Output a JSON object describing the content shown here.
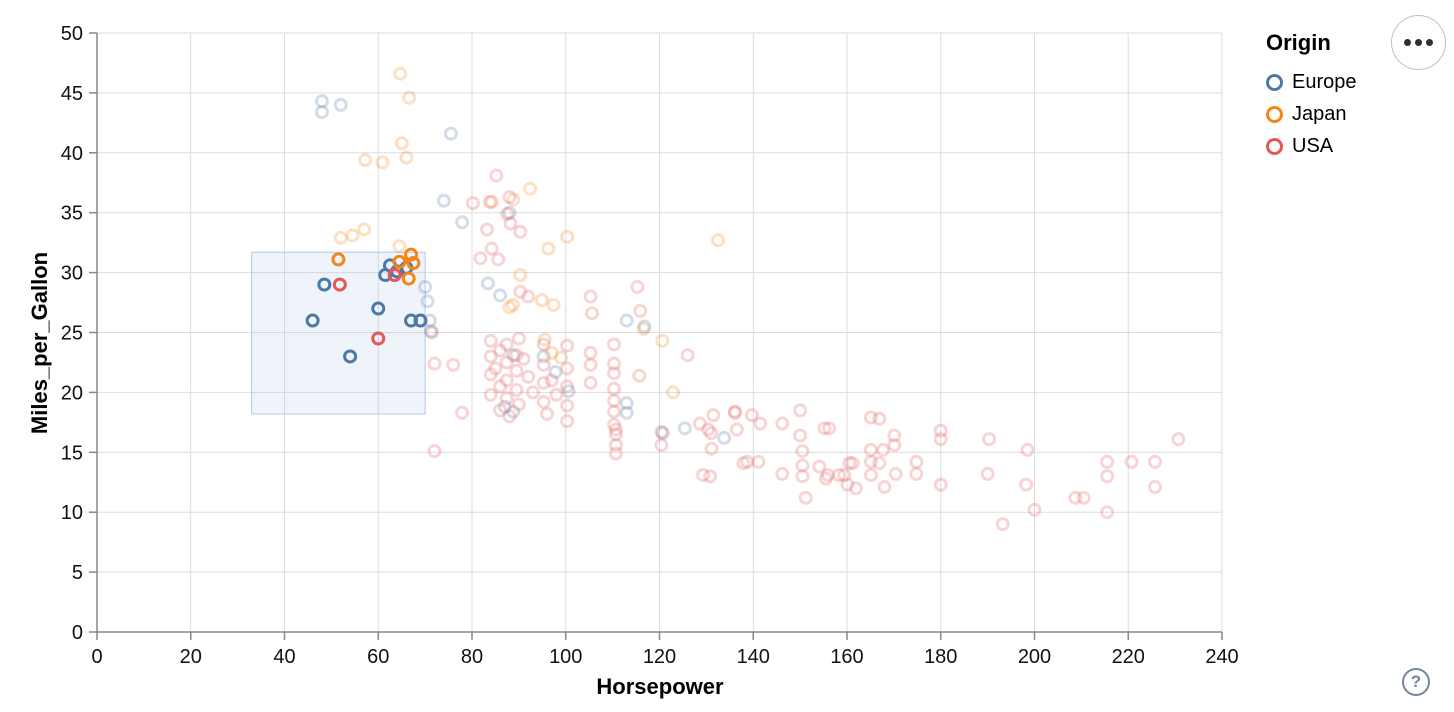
{
  "window": {
    "background": "#ffffff"
  },
  "controls": {
    "menu_button": {
      "icon": "ellipsis-icon"
    },
    "help_button": {
      "label": "?"
    }
  },
  "legend": {
    "title": "Origin",
    "entries": [
      {
        "label": "Europe",
        "color": "#4c78a8"
      },
      {
        "label": "Japan",
        "color": "#f58518"
      },
      {
        "label": "USA",
        "color": "#e45756"
      }
    ]
  },
  "chart_data": {
    "type": "scatter",
    "title": "",
    "xlabel": "Horsepower",
    "ylabel": "Miles_per_Gallon",
    "xlim": [
      0,
      240
    ],
    "ylim": [
      0,
      50
    ],
    "xticks": [
      0,
      20,
      40,
      60,
      80,
      100,
      120,
      140,
      160,
      180,
      200,
      220,
      240
    ],
    "yticks": [
      0,
      5,
      10,
      15,
      20,
      25,
      30,
      35,
      40,
      45,
      50
    ],
    "grid": true,
    "legend_position": "top-right",
    "point_style": "open-circle",
    "unselected_opacity": 0.25,
    "style": {
      "grid_color": "#dddddd",
      "axis_color": "#888888",
      "tick_label_color": "#111111",
      "point_radius": 5.5,
      "point_stroke_width": 3
    },
    "selection_brush": {
      "x": [
        33,
        70
      ],
      "y": [
        18.2,
        31.7
      ],
      "fill": "#a9c0e8",
      "fill_opacity": 0.18,
      "stroke": "#b3c7ea"
    },
    "series": [
      {
        "name": "Europe",
        "color": "#4c78a8",
        "selected": [
          [
            46,
            26
          ],
          [
            48.5,
            29
          ],
          [
            54,
            23
          ],
          [
            60,
            27
          ],
          [
            61.5,
            29.8
          ],
          [
            62.5,
            30.6
          ],
          [
            64,
            30.1
          ],
          [
            66,
            30.4
          ],
          [
            67,
            26
          ],
          [
            69,
            26
          ]
        ],
        "unselected": [
          [
            48,
            43.4
          ],
          [
            48,
            44.3
          ],
          [
            52,
            44
          ],
          [
            75.5,
            41.6
          ],
          [
            74,
            36
          ],
          [
            77.9,
            34.2
          ],
          [
            88,
            35
          ],
          [
            70,
            28.8
          ],
          [
            70.5,
            27.6
          ],
          [
            71,
            26
          ],
          [
            71.2,
            25.1
          ],
          [
            83.4,
            29.1
          ],
          [
            86,
            28.1
          ],
          [
            88.8,
            23.1
          ],
          [
            95.3,
            23
          ],
          [
            97.8,
            21.7
          ],
          [
            100.6,
            20.1
          ],
          [
            87,
            18.8
          ],
          [
            88.8,
            18.4
          ],
          [
            113,
            26
          ],
          [
            116.8,
            25.5
          ],
          [
            113,
            19.1
          ],
          [
            113,
            18.3
          ],
          [
            120.7,
            16.6
          ],
          [
            125.4,
            17
          ],
          [
            133.8,
            16.2
          ]
        ]
      },
      {
        "name": "Japan",
        "color": "#f58518",
        "selected": [
          [
            51.5,
            31.1
          ],
          [
            64.5,
            30.9
          ],
          [
            67,
            31.5
          ],
          [
            67.5,
            30.8
          ],
          [
            66.5,
            29.5
          ]
        ],
        "unselected": [
          [
            64.7,
            46.6
          ],
          [
            66.6,
            44.6
          ],
          [
            65,
            40.8
          ],
          [
            66,
            39.6
          ],
          [
            60.9,
            39.2
          ],
          [
            57.2,
            39.4
          ],
          [
            92.4,
            37
          ],
          [
            88.8,
            36.1
          ],
          [
            83.8,
            35.9
          ],
          [
            57,
            33.6
          ],
          [
            54.5,
            33.1
          ],
          [
            52,
            32.9
          ],
          [
            64.5,
            32.2
          ],
          [
            100.3,
            33
          ],
          [
            96.3,
            32
          ],
          [
            132.5,
            32.7
          ],
          [
            90.3,
            29.8
          ],
          [
            88,
            27.1
          ],
          [
            88.7,
            27.3
          ],
          [
            94.9,
            27.7
          ],
          [
            97.4,
            27.3
          ],
          [
            95.5,
            24.4
          ],
          [
            97,
            23.3
          ],
          [
            99,
            22.9
          ],
          [
            116.6,
            25.3
          ],
          [
            120.6,
            24.3
          ],
          [
            122.9,
            20
          ]
        ]
      },
      {
        "name": "USA",
        "color": "#e45756",
        "selected": [
          [
            51.8,
            29
          ],
          [
            60,
            24.5
          ],
          [
            63.5,
            29.8
          ]
        ],
        "unselected": [
          [
            85.2,
            38.1
          ],
          [
            80.2,
            35.8
          ],
          [
            84.2,
            35.9
          ],
          [
            88,
            36.3
          ],
          [
            87.5,
            34.9
          ],
          [
            88.2,
            34.1
          ],
          [
            83.2,
            33.6
          ],
          [
            90.3,
            33.4
          ],
          [
            84.2,
            32
          ],
          [
            81.8,
            31.2
          ],
          [
            85.6,
            31.1
          ],
          [
            90.3,
            28.4
          ],
          [
            92,
            28
          ],
          [
            105.3,
            28
          ],
          [
            105.6,
            26.6
          ],
          [
            115.3,
            28.8
          ],
          [
            115.9,
            26.8
          ],
          [
            126,
            23.1
          ],
          [
            72,
            15.1
          ],
          [
            71.5,
            25
          ],
          [
            72,
            22.4
          ],
          [
            76,
            22.3
          ],
          [
            77.9,
            18.3
          ],
          [
            84,
            24.3
          ],
          [
            84,
            23
          ],
          [
            84,
            21.5
          ],
          [
            84,
            19.8
          ],
          [
            85,
            22
          ],
          [
            86,
            23.5
          ],
          [
            86,
            20.5
          ],
          [
            86,
            18.5
          ],
          [
            87.4,
            24
          ],
          [
            87.4,
            22.5
          ],
          [
            87.4,
            21
          ],
          [
            87.4,
            19.5
          ],
          [
            88,
            18
          ],
          [
            89.5,
            23.1
          ],
          [
            89.5,
            21.8
          ],
          [
            89.5,
            20.2
          ],
          [
            90,
            24.5
          ],
          [
            90,
            19
          ],
          [
            91,
            22.8
          ],
          [
            92,
            21.3
          ],
          [
            93,
            20
          ],
          [
            95.3,
            24
          ],
          [
            95.3,
            22.3
          ],
          [
            95.3,
            20.8
          ],
          [
            95.3,
            19.2
          ],
          [
            96,
            18.2
          ],
          [
            97,
            21
          ],
          [
            98,
            19.8
          ],
          [
            100.3,
            23.9
          ],
          [
            100.3,
            22
          ],
          [
            100.3,
            20.5
          ],
          [
            100.3,
            18.9
          ],
          [
            100.3,
            17.6
          ],
          [
            105.3,
            23.3
          ],
          [
            105.3,
            22.3
          ],
          [
            105.3,
            20.8
          ],
          [
            110.3,
            24
          ],
          [
            110.3,
            22.4
          ],
          [
            110.3,
            21.6
          ],
          [
            110.3,
            20.3
          ],
          [
            110.3,
            19.3
          ],
          [
            110.3,
            18.4
          ],
          [
            110.3,
            17.3
          ],
          [
            110.7,
            16.9
          ],
          [
            110.7,
            16.5
          ],
          [
            110.7,
            15.6
          ],
          [
            110.7,
            14.9
          ],
          [
            115.7,
            21.4
          ],
          [
            120.4,
            16.7
          ],
          [
            120.4,
            15.6
          ],
          [
            128.6,
            17.4
          ],
          [
            130.4,
            16.9
          ],
          [
            131,
            16.6
          ],
          [
            131.1,
            15.3
          ],
          [
            129.3,
            13.1
          ],
          [
            130.8,
            13
          ],
          [
            136.1,
            18.4
          ],
          [
            136.5,
            16.9
          ],
          [
            131.5,
            18.1
          ],
          [
            136.1,
            18.3
          ],
          [
            137.9,
            14.1
          ],
          [
            139.7,
            18.1
          ],
          [
            141.5,
            17.4
          ],
          [
            146.2,
            17.4
          ],
          [
            156.2,
            17
          ],
          [
            138.7,
            14.2
          ],
          [
            141.1,
            14.2
          ],
          [
            146.2,
            13.2
          ],
          [
            150,
            18.5
          ],
          [
            150,
            16.4
          ],
          [
            150.5,
            15.1
          ],
          [
            150.5,
            13.9
          ],
          [
            150.5,
            13
          ],
          [
            151.2,
            11.2
          ],
          [
            155.5,
            12.8
          ],
          [
            159.4,
            13.1
          ],
          [
            161.2,
            14.1
          ],
          [
            161.9,
            12
          ],
          [
            166.9,
            17.8
          ],
          [
            167.7,
            15.2
          ],
          [
            166.9,
            14.1
          ],
          [
            168,
            12.1
          ],
          [
            165.1,
            17.9
          ],
          [
            155.2,
            17
          ],
          [
            170.1,
            16.4
          ],
          [
            170.1,
            15.6
          ],
          [
            165.1,
            15.2
          ],
          [
            165.1,
            14.2
          ],
          [
            165.1,
            13.1
          ],
          [
            160.5,
            14.1
          ],
          [
            154.1,
            13.8
          ],
          [
            155.9,
            13.1
          ],
          [
            158.3,
            13.1
          ],
          [
            160.1,
            12.3
          ],
          [
            170.4,
            13.2
          ],
          [
            174.8,
            14.2
          ],
          [
            174.8,
            13.2
          ],
          [
            180,
            16.8
          ],
          [
            180,
            16.1
          ],
          [
            180,
            12.3
          ],
          [
            190.3,
            16.1
          ],
          [
            190,
            13.2
          ],
          [
            193.2,
            9
          ],
          [
            198.5,
            15.2
          ],
          [
            198.2,
            12.3
          ],
          [
            200,
            10.2
          ],
          [
            208.7,
            11.2
          ],
          [
            210.5,
            11.2
          ],
          [
            215.5,
            14.2
          ],
          [
            215.5,
            13
          ],
          [
            215.5,
            10
          ],
          [
            220.7,
            14.2
          ],
          [
            225.7,
            14.2
          ],
          [
            225.7,
            12.1
          ],
          [
            230.7,
            16.1
          ]
        ]
      }
    ]
  }
}
